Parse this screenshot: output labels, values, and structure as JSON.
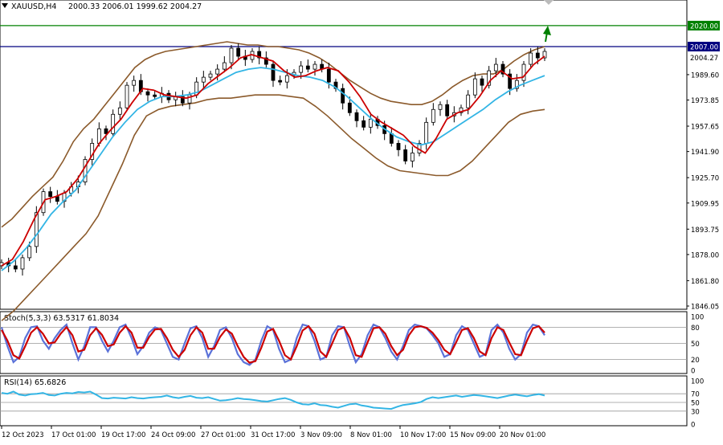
{
  "symbol_header": "XAUUSD,H4",
  "ohlc_header": "2000.33 2006.01 1999.62 2004.27",
  "stoch_header": "Stoch(5,3,3) 63.5317 61.8034",
  "rsi_header": "RSI(14) 65.6826",
  "colors": {
    "price_candle": "#000000",
    "bollinger": "#8b5a2b",
    "ma_fast": "#cc0000",
    "ma_slow": "#33b5e5",
    "level_2020": "#008000",
    "level_2007": "#000080",
    "arrow": "#008000",
    "stoch_main": "#5b72d9",
    "stoch_signal": "#cc0000",
    "rsi": "#33b5e5",
    "grid_line": "#999999"
  },
  "chart_data": [
    {
      "type": "candlestick",
      "title": "XAUUSD,H4",
      "ylim": [
        1846.05,
        2027
      ],
      "yticks": [
        "2020.00",
        "2007.00",
        "2004.27",
        "1989.60",
        "1973.85",
        "1957.65",
        "1941.90",
        "1925.70",
        "1909.95",
        "1893.75",
        "1878.00",
        "1861.80",
        "1846.05"
      ],
      "ytick_values": [
        2020.0,
        2007.0,
        2004.27,
        1989.6,
        1973.85,
        1957.65,
        1941.9,
        1925.7,
        1909.95,
        1893.75,
        1878.0,
        1861.8,
        1846.05
      ],
      "highlighted_levels": [
        {
          "label": "2020.00",
          "value": 2020.0,
          "color": "#008000"
        },
        {
          "label": "2007.00",
          "value": 2007.0,
          "color": "#000080"
        },
        {
          "label": "2004.27",
          "value": 2004.27,
          "color": "#ffffff"
        }
      ],
      "xticks": [
        "12 Oct 2023",
        "17 Oct 01:00",
        "19 Oct 17:00",
        "24 Oct 09:00",
        "27 Oct 01:00",
        "31 Oct 17:00",
        "3 Nov 09:00",
        "8 Nov 01:00",
        "10 Nov 17:00",
        "15 Nov 09:00",
        "20 Nov 01:00"
      ],
      "close": [
        1873,
        1871,
        1869,
        1876,
        1883,
        1904,
        1917,
        1914,
        1911,
        1916,
        1920,
        1923,
        1937,
        1947,
        1956,
        1953,
        1965,
        1969,
        1983,
        1986,
        1979,
        1977,
        1976,
        1978,
        1974,
        1976,
        1972,
        1977,
        1985,
        1988,
        1990,
        1993,
        1997,
        2006,
        2001,
        1999,
        2004,
        2000,
        1996,
        1986,
        1985,
        1989,
        1991,
        1995,
        1993,
        1996,
        1993,
        1985,
        1981,
        1972,
        1966,
        1961,
        1957,
        1962,
        1958,
        1953,
        1947,
        1943,
        1936,
        1941,
        1947,
        1960,
        1968,
        1971,
        1964,
        1966,
        1969,
        1977,
        1987,
        1983,
        1992,
        1996,
        1990,
        1981,
        1986,
        1996,
        2003,
        2000,
        2004
      ],
      "bb_upper": [
        1895,
        1900,
        1907,
        1914,
        1920,
        1926,
        1936,
        1948,
        1956,
        1962,
        1970,
        1978,
        1986,
        1994,
        1999,
        2002,
        2004,
        2005,
        2006,
        2007,
        2008,
        2009,
        2010,
        2009,
        2008,
        2008,
        2007,
        2007,
        2006,
        2005,
        2003,
        2000,
        1996,
        1991,
        1986,
        1982,
        1978,
        1975,
        1973,
        1972,
        1971,
        1971,
        1973,
        1977,
        1982,
        1986,
        1989,
        1990,
        1990,
        1993,
        1998,
        2002,
        2005,
        2007
      ],
      "bb_lower": [
        1837,
        1843,
        1851,
        1859,
        1867,
        1875,
        1883,
        1891,
        1902,
        1918,
        1934,
        1952,
        1964,
        1968,
        1970,
        1971,
        1972,
        1974,
        1975,
        1975,
        1976,
        1977,
        1977,
        1977,
        1976,
        1975,
        1970,
        1964,
        1957,
        1950,
        1944,
        1938,
        1933,
        1930,
        1929,
        1928,
        1927,
        1927,
        1930,
        1936,
        1944,
        1952,
        1960,
        1965,
        1967,
        1968
      ],
      "ma_fast": [
        1871,
        1875,
        1886,
        1900,
        1912,
        1914,
        1917,
        1925,
        1936,
        1947,
        1955,
        1962,
        1972,
        1981,
        1980,
        1977,
        1976,
        1975,
        1977,
        1984,
        1989,
        1994,
        2000,
        2002,
        2000,
        1998,
        1992,
        1988,
        1989,
        1992,
        1994,
        1992,
        1985,
        1976,
        1965,
        1960,
        1956,
        1952,
        1945,
        1941,
        1950,
        1962,
        1966,
        1968,
        1976,
        1986,
        1992,
        1987,
        1988,
        1996,
        2001
      ],
      "ma_slow": [
        1868,
        1874,
        1882,
        1892,
        1903,
        1911,
        1918,
        1929,
        1940,
        1951,
        1960,
        1968,
        1973,
        1976,
        1976,
        1977,
        1979,
        1983,
        1987,
        1991,
        1993,
        1994,
        1993,
        1991,
        1989,
        1988,
        1986,
        1982,
        1976,
        1969,
        1962,
        1956,
        1951,
        1948,
        1946,
        1948,
        1953,
        1958,
        1963,
        1968,
        1974,
        1979,
        1983,
        1986,
        1989
      ]
    },
    {
      "type": "line",
      "title": "Stoch(5,3,3) 63.5317 61.8034",
      "ylim": [
        0,
        100
      ],
      "yticks": [
        "100",
        "80",
        "50",
        "20",
        "0"
      ],
      "ytick_values": [
        100,
        80,
        50,
        20,
        0
      ],
      "levels": [
        80,
        50,
        20
      ],
      "series": [
        {
          "values": [
            80,
            45,
            15,
            25,
            60,
            80,
            82,
            55,
            40,
            60,
            75,
            85,
            50,
            20,
            45,
            80,
            80,
            55,
            35,
            55,
            80,
            85,
            60,
            30,
            45,
            70,
            80,
            75,
            50,
            25,
            20,
            50,
            78,
            82,
            60,
            25,
            45,
            75,
            80,
            60,
            30,
            15,
            10,
            20,
            55,
            82,
            75,
            40,
            15,
            20,
            60,
            85,
            82,
            55,
            20,
            25,
            65,
            82,
            80,
            45,
            15,
            30,
            65,
            85,
            80,
            60,
            35,
            20,
            45,
            75,
            85,
            82,
            78,
            65,
            50,
            25,
            30,
            65,
            82,
            75,
            50,
            25,
            30,
            75,
            85,
            70,
            40,
            20,
            30,
            70,
            85,
            82,
            65
          ]
        },
        {
          "values": [
            75,
            55,
            28,
            22,
            45,
            70,
            80,
            68,
            50,
            52,
            68,
            80,
            65,
            35,
            38,
            65,
            78,
            66,
            45,
            48,
            70,
            82,
            70,
            42,
            42,
            62,
            76,
            77,
            60,
            38,
            25,
            38,
            65,
            80,
            70,
            40,
            40,
            62,
            76,
            68,
            45,
            25,
            14,
            17,
            42,
            72,
            77,
            55,
            28,
            20,
            45,
            74,
            82,
            68,
            35,
            25,
            50,
            75,
            80,
            60,
            28,
            25,
            52,
            78,
            80,
            68,
            45,
            28,
            38,
            65,
            80,
            82,
            79,
            70,
            56,
            38,
            30,
            52,
            75,
            78,
            60,
            35,
            28,
            60,
            80,
            75,
            52,
            30,
            28,
            55,
            78,
            82,
            70
          ]
        }
      ]
    },
    {
      "type": "line",
      "title": "RSI(14) 65.6826",
      "ylim": [
        0,
        100
      ],
      "yticks": [
        "100",
        "70",
        "50",
        "30",
        "0"
      ],
      "ytick_values": [
        100,
        70,
        50,
        30,
        0
      ],
      "levels": [
        70,
        50,
        30
      ],
      "series": [
        {
          "values": [
            72,
            70,
            75,
            68,
            66,
            69,
            70,
            72,
            67,
            66,
            70,
            72,
            71,
            74,
            73,
            75,
            68,
            60,
            59,
            61,
            60,
            59,
            62,
            60,
            59,
            61,
            62,
            63,
            66,
            62,
            60,
            63,
            65,
            61,
            60,
            62,
            58,
            54,
            55,
            57,
            60,
            58,
            57,
            55,
            53,
            52,
            55,
            58,
            60,
            56,
            50,
            46,
            45,
            48,
            44,
            43,
            40,
            38,
            42,
            46,
            47,
            43,
            41,
            38,
            37,
            36,
            35,
            40,
            44,
            46,
            48,
            51,
            58,
            62,
            60,
            62,
            64,
            66,
            63,
            65,
            67,
            66,
            64,
            62,
            60,
            63,
            66,
            68,
            66,
            64,
            67,
            69,
            66
          ]
        }
      ]
    }
  ]
}
